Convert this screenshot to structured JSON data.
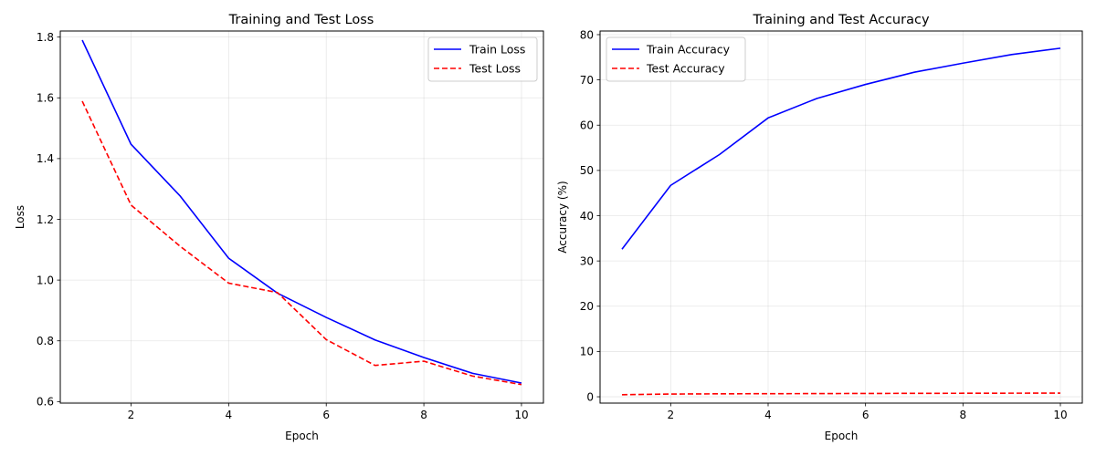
{
  "chart_data": [
    {
      "type": "line",
      "title": "Training and Test Loss",
      "xlabel": "Epoch",
      "ylabel": "Loss",
      "xlim": [
        0.55,
        10.45
      ],
      "ylim": [
        0.595,
        1.82
      ],
      "xticks": [
        2,
        4,
        6,
        8,
        10
      ],
      "xtick_labels": [
        "2",
        "4",
        "6",
        "8",
        "10"
      ],
      "yticks": [
        0.6,
        0.8,
        1.0,
        1.2,
        1.4,
        1.6,
        1.8
      ],
      "ytick_labels": [
        "0.6",
        "0.8",
        "1.0",
        "1.2",
        "1.4",
        "1.6",
        "1.8"
      ],
      "grid": true,
      "legend_position": "top-right",
      "x": [
        1,
        2,
        3,
        4,
        5,
        6,
        7,
        8,
        9,
        10
      ],
      "series": [
        {
          "name": "Train Loss",
          "color": "#0000ff",
          "dash": "solid",
          "values": [
            1.79,
            1.447,
            1.278,
            1.072,
            0.957,
            0.877,
            0.803,
            0.745,
            0.693,
            0.661
          ]
        },
        {
          "name": "Test Loss",
          "color": "#ff0000",
          "dash": "dashed",
          "values": [
            1.589,
            1.247,
            1.112,
            0.99,
            0.959,
            0.804,
            0.719,
            0.733,
            0.684,
            0.656
          ]
        }
      ]
    },
    {
      "type": "line",
      "title": "Training and Test Accuracy",
      "xlabel": "Epoch",
      "ylabel": "Accuracy (%)",
      "xlim": [
        0.55,
        10.45
      ],
      "ylim": [
        -1.4,
        80.8
      ],
      "xticks": [
        2,
        4,
        6,
        8,
        10
      ],
      "xtick_labels": [
        "2",
        "4",
        "6",
        "8",
        "10"
      ],
      "yticks": [
        0,
        10,
        20,
        30,
        40,
        50,
        60,
        70,
        80
      ],
      "ytick_labels": [
        "0",
        "10",
        "20",
        "30",
        "40",
        "50",
        "60",
        "70",
        "80"
      ],
      "grid": true,
      "legend_position": "top-left",
      "x": [
        1,
        2,
        3,
        4,
        5,
        6,
        7,
        8,
        9,
        10
      ],
      "series": [
        {
          "name": "Train Accuracy",
          "color": "#0000ff",
          "dash": "solid",
          "values": [
            32.6,
            46.7,
            53.5,
            61.6,
            65.9,
            69.0,
            71.7,
            73.7,
            75.6,
            77.0
          ]
        },
        {
          "name": "Test Accuracy",
          "color": "#ff0000",
          "dash": "dashed",
          "values": [
            0.45,
            0.6,
            0.65,
            0.68,
            0.7,
            0.73,
            0.75,
            0.77,
            0.79,
            0.8
          ]
        }
      ]
    }
  ]
}
